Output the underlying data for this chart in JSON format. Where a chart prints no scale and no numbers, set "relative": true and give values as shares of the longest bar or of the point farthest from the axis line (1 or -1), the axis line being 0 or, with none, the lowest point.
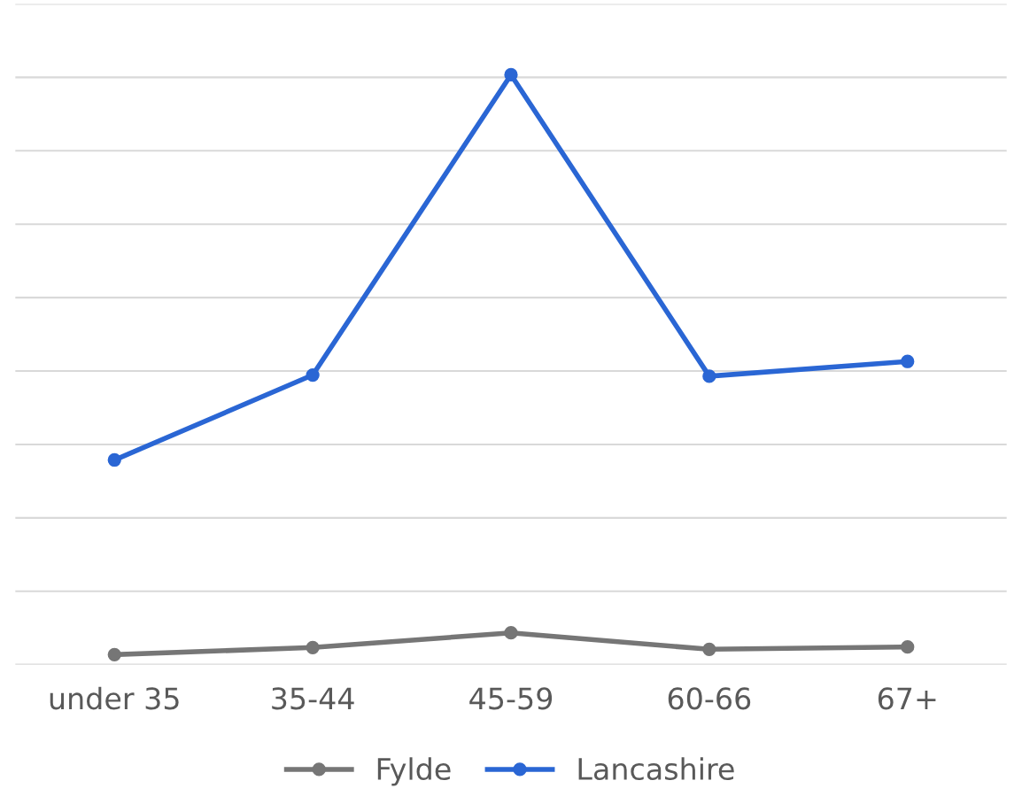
{
  "chart_data": {
    "type": "line",
    "relative": true,
    "categories": [
      "under 35",
      "35-44",
      "45-59",
      "60-66",
      "67+"
    ],
    "series": [
      {
        "name": "Fylde",
        "color": "#767676",
        "values": [
          0.017,
          0.029,
          0.054,
          0.026,
          0.03
        ]
      },
      {
        "name": "Lancashire",
        "color": "#2a66d4",
        "values": [
          0.347,
          0.491,
          1.0,
          0.489,
          0.514
        ]
      }
    ],
    "marker": "circle",
    "grid": "y",
    "legend": "bottom"
  }
}
